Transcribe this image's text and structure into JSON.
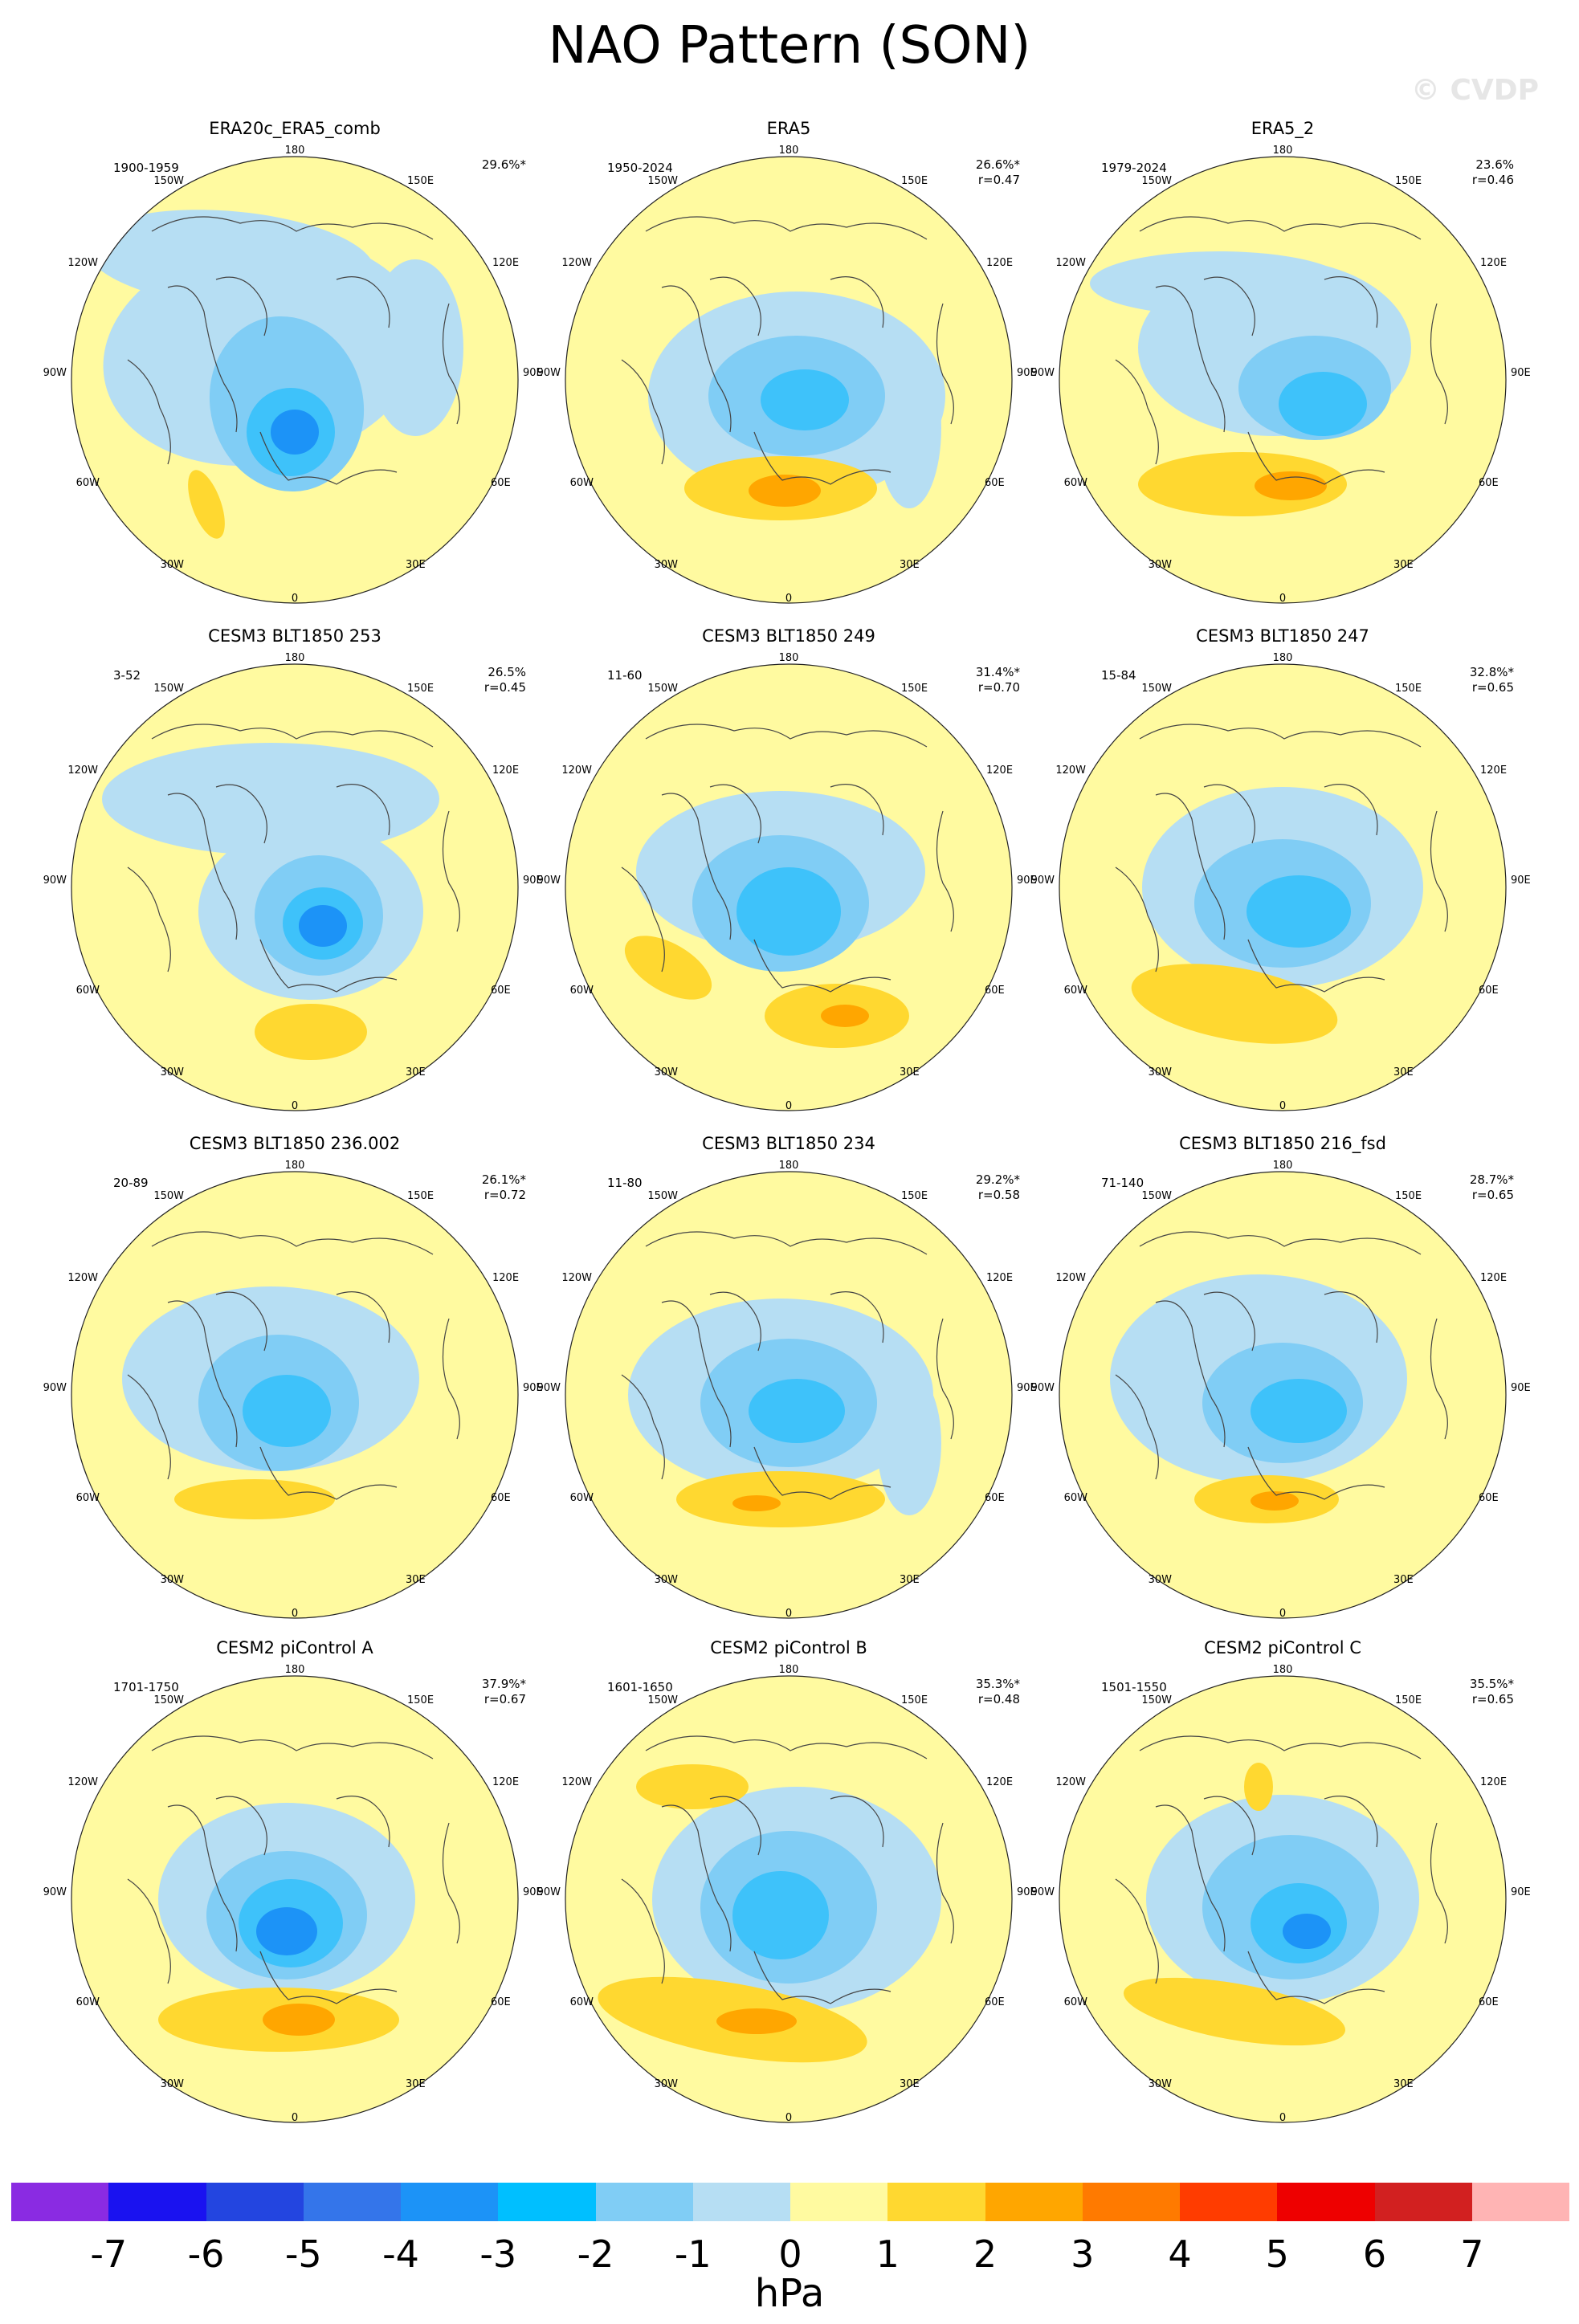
{
  "title": "NAO Pattern (SON)",
  "watermark": "© CVDP",
  "lon_labels": {
    "deg180": "180",
    "deg150W": "150W",
    "deg150E": "150E",
    "deg120W": "120W",
    "deg120E": "120E",
    "deg90W": "90W",
    "deg90E": "90E",
    "deg60W": "60W",
    "deg60E": "60E",
    "deg30W": "30W",
    "deg30E": "30E",
    "deg0": "0"
  },
  "panels": [
    {
      "title": "ERA20c_ERA5_comb",
      "years": "1900-1959",
      "pct": "29.6%*",
      "r": ""
    },
    {
      "title": "ERA5",
      "years": "1950-2024",
      "pct": "26.6%*",
      "r": "r=0.47"
    },
    {
      "title": "ERA5_2",
      "years": "1979-2024",
      "pct": "23.6%",
      "r": "r=0.46"
    },
    {
      "title": "CESM3 BLT1850 253",
      "years": "3-52",
      "pct": "26.5%",
      "r": "r=0.45"
    },
    {
      "title": "CESM3 BLT1850 249",
      "years": "11-60",
      "pct": "31.4%*",
      "r": "r=0.70"
    },
    {
      "title": "CESM3 BLT1850 247",
      "years": "15-84",
      "pct": "32.8%*",
      "r": "r=0.65"
    },
    {
      "title": "CESM3 BLT1850 236.002",
      "years": "20-89",
      "pct": "26.1%*",
      "r": "r=0.72"
    },
    {
      "title": "CESM3 BLT1850 234",
      "years": "11-80",
      "pct": "29.2%*",
      "r": "r=0.58"
    },
    {
      "title": "CESM3 BLT1850 216_fsd",
      "years": "71-140",
      "pct": "28.7%*",
      "r": "r=0.65"
    },
    {
      "title": "CESM2 piControl A",
      "years": "1701-1750",
      "pct": "37.9%*",
      "r": "r=0.67"
    },
    {
      "title": "CESM2 piControl B",
      "years": "1601-1650",
      "pct": "35.3%*",
      "r": "r=0.48"
    },
    {
      "title": "CESM2 piControl C",
      "years": "1501-1550",
      "pct": "35.5%*",
      "r": "r=0.65"
    }
  ],
  "colorbar": {
    "colors": [
      "#8a2be2",
      "#1a12f0",
      "#2345e0",
      "#3475ea",
      "#1c93f7",
      "#00bfff",
      "#80cdf5",
      "#b6def3",
      "#fffaa0",
      "#ffd830",
      "#ffa600",
      "#ff7a00",
      "#ff3c00",
      "#ee0000",
      "#d22020",
      "#ffb4b4"
    ],
    "ticks": [
      "-7",
      "-6",
      "-5",
      "-4",
      "-3",
      "-2",
      "-1",
      "0",
      "1",
      "2",
      "3",
      "4",
      "5",
      "6",
      "7"
    ],
    "unit": "hPa"
  },
  "map_colors": {
    "pos1": "#fffaa0",
    "pos2": "#ffd830",
    "pos3": "#ffa600",
    "neg1": "#b6def3",
    "neg2": "#80cdf5",
    "neg3": "#3ec2fa",
    "neg4": "#1c93f7"
  }
}
